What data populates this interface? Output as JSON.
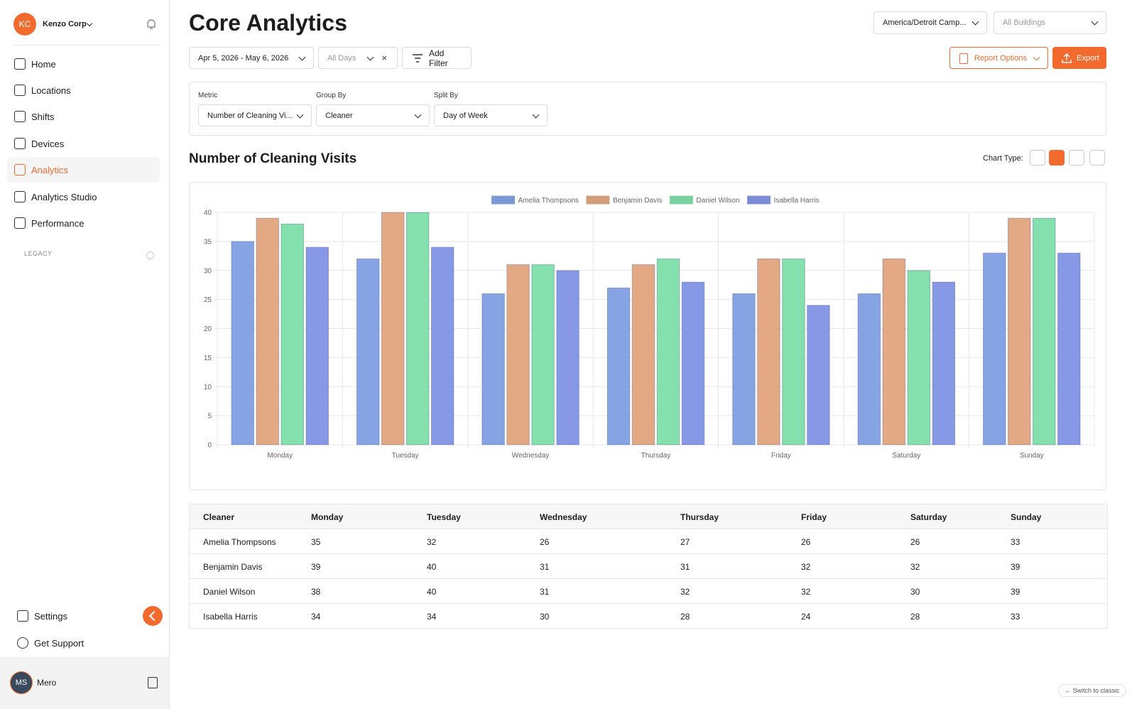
{
  "sidebar": {
    "org_initials": "KC",
    "org_name": "Kenzo Corp",
    "nav": [
      "Home",
      "Locations",
      "Shifts",
      "Devices",
      "Analytics",
      "Analytics Studio",
      "Performance"
    ],
    "legacy": "LEGACY",
    "settings": "Settings",
    "support": "Get Support",
    "user_initials": "MS",
    "user_name": "Mero"
  },
  "header": {
    "title": "Core Analytics",
    "campus": "America/Detroit Camp...",
    "buildings": "All Buildings",
    "date_range": "Apr 5, 2026 - May 6, 2026",
    "days": "All Days",
    "add_filter": "Add Filter",
    "report_options": "Report Options",
    "export": "Export"
  },
  "config": {
    "metric_label": "Metric",
    "metric": "Number of Cleaning Vi...",
    "group_by_label": "Group By",
    "group_by": "Cleaner",
    "split_by_label": "Split By",
    "split_by": "Day of Week"
  },
  "chart_type_label": "Chart Type:",
  "chart_data": {
    "type": "bar",
    "title": "Number of Cleaning Visits",
    "categories": [
      "Monday",
      "Tuesday",
      "Wednesday",
      "Thursday",
      "Friday",
      "Saturday",
      "Sunday"
    ],
    "series": [
      {
        "name": "Amelia Thompsons",
        "color": "#8aa9ea",
        "values": [
          35,
          32,
          26,
          27,
          26,
          26,
          33
        ]
      },
      {
        "name": "Benjamin Davis",
        "color": "#e9ae88",
        "values": [
          39,
          40,
          31,
          31,
          32,
          32,
          39
        ]
      },
      {
        "name": "Daniel Wilson",
        "color": "#88e8b2",
        "values": [
          38,
          40,
          31,
          32,
          32,
          30,
          39
        ]
      },
      {
        "name": "Isabella Harris",
        "color": "#8b9ded",
        "values": [
          34,
          34,
          30,
          28,
          24,
          28,
          33
        ]
      }
    ],
    "ylim": [
      0,
      40
    ],
    "yticks": [
      0,
      5,
      10,
      15,
      20,
      25,
      30,
      35,
      40
    ],
    "grid": true,
    "legend": "top"
  },
  "table": {
    "header": [
      "Cleaner",
      "Monday",
      "Tuesday",
      "Wednesday",
      "Thursday",
      "Friday",
      "Saturday",
      "Sunday"
    ],
    "rows": [
      [
        "Amelia Thompsons",
        35,
        32,
        26,
        27,
        26,
        26,
        33
      ],
      [
        "Benjamin Davis",
        39,
        40,
        31,
        31,
        32,
        32,
        39
      ],
      [
        "Daniel Wilson",
        38,
        40,
        31,
        32,
        32,
        30,
        39
      ],
      [
        "Isabella Harris",
        34,
        34,
        30,
        28,
        24,
        28,
        33
      ]
    ]
  },
  "footer": {
    "switch": "← Switch to classic"
  }
}
